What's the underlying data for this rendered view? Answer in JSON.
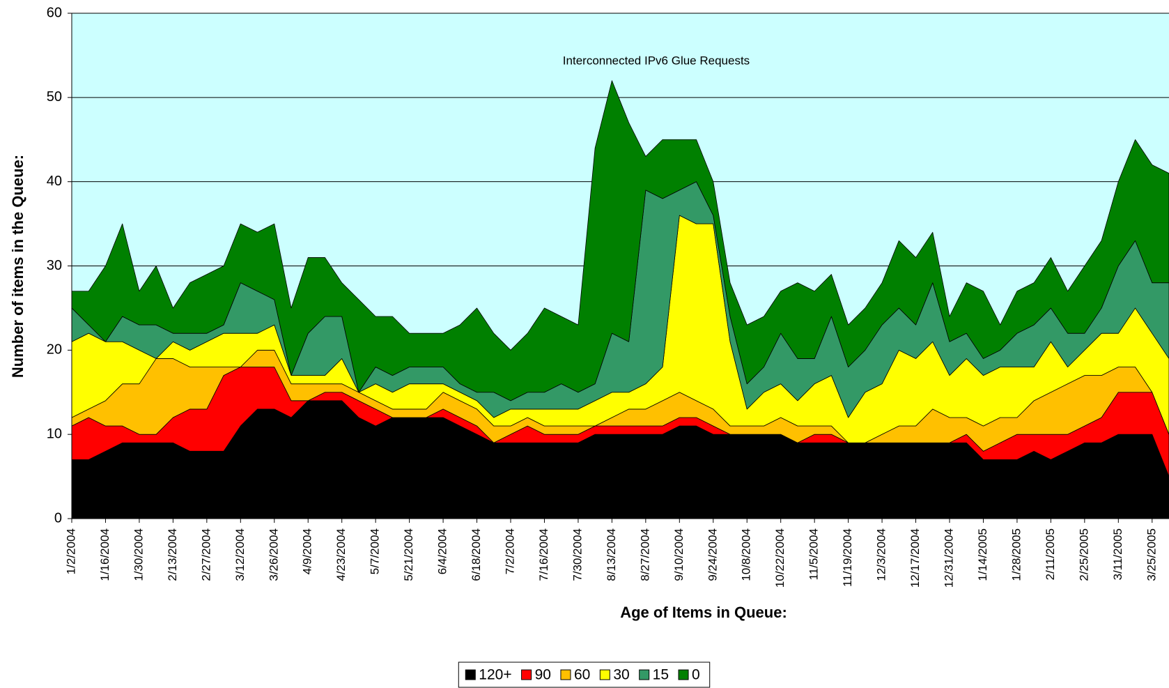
{
  "chart_data": {
    "type": "stacked_area",
    "title": "Interconnected IPv6 Glue Requests",
    "x_label": "Age of Items in Queue:",
    "y_label": "Number of items in the Queue:",
    "categories": [
      "1/2/2004",
      null,
      "1/16/2004",
      null,
      "1/30/2004",
      null,
      "2/13/2004",
      null,
      "2/27/2004",
      null,
      "3/12/2004",
      null,
      "3/26/2004",
      null,
      "4/9/2004",
      null,
      "4/23/2004",
      null,
      "5/7/2004",
      null,
      "5/21/2004",
      null,
      "6/4/2004",
      null,
      "6/18/2004",
      null,
      "7/2/2004",
      null,
      "7/16/2004",
      null,
      "7/30/2004",
      null,
      "8/13/2004",
      null,
      "8/27/2004",
      null,
      "9/10/2004",
      null,
      "9/24/2004",
      null,
      "10/8/2004",
      null,
      "10/22/2004",
      null,
      "11/5/2004",
      null,
      "11/19/2004",
      null,
      "12/3/2004",
      null,
      "12/17/2004",
      null,
      "12/31/2004",
      null,
      "1/14/2005",
      null,
      "1/28/2005",
      null,
      "2/11/2005",
      null,
      "2/25/2005",
      null,
      "3/11/2005",
      null,
      "3/25/2005",
      null
    ],
    "series": [
      {
        "name": "120+",
        "color": "#000000",
        "values": [
          7,
          7,
          8,
          9,
          9,
          9,
          9,
          8,
          8,
          8,
          11,
          13,
          13,
          12,
          14,
          14,
          14,
          12,
          11,
          12,
          12,
          12,
          12,
          11,
          10,
          9,
          9,
          9,
          9,
          9,
          9,
          10,
          10,
          10,
          10,
          10,
          11,
          11,
          10,
          10,
          10,
          10,
          10,
          9,
          9,
          9,
          9,
          9,
          9,
          9,
          9,
          9,
          9,
          9,
          7,
          7,
          7,
          8,
          7,
          8,
          9,
          9,
          10,
          10,
          10,
          5
        ]
      },
      {
        "name": "90",
        "color": "#ff0000",
        "values": [
          4,
          5,
          3,
          2,
          1,
          1,
          3,
          5,
          5,
          9,
          7,
          5,
          5,
          2,
          0,
          1,
          1,
          2,
          2,
          0,
          0,
          0,
          1,
          1,
          1,
          0,
          1,
          2,
          1,
          1,
          1,
          1,
          1,
          1,
          1,
          1,
          1,
          1,
          1,
          0,
          0,
          0,
          0,
          0,
          1,
          1,
          0,
          0,
          0,
          0,
          0,
          0,
          0,
          1,
          1,
          2,
          3,
          2,
          3,
          2,
          2,
          3,
          5,
          5,
          5,
          5
        ]
      },
      {
        "name": "60",
        "color": "#ffc000",
        "values": [
          1,
          1,
          3,
          5,
          6,
          9,
          7,
          5,
          5,
          1,
          0,
          2,
          2,
          2,
          2,
          1,
          1,
          1,
          1,
          1,
          1,
          1,
          2,
          2,
          2,
          2,
          1,
          1,
          1,
          1,
          1,
          0,
          1,
          2,
          2,
          3,
          3,
          2,
          2,
          1,
          1,
          1,
          2,
          2,
          1,
          1,
          0,
          0,
          1,
          2,
          2,
          4,
          3,
          2,
          3,
          3,
          2,
          4,
          5,
          6,
          6,
          5,
          3,
          3,
          0,
          0
        ]
      },
      {
        "name": "30",
        "color": "#ffff00",
        "values": [
          9,
          9,
          7,
          5,
          4,
          0,
          2,
          2,
          3,
          4,
          4,
          2,
          3,
          1,
          1,
          1,
          3,
          0,
          2,
          2,
          3,
          3,
          1,
          1,
          1,
          1,
          2,
          1,
          2,
          2,
          2,
          3,
          3,
          2,
          3,
          4,
          21,
          21,
          22,
          10,
          2,
          4,
          4,
          3,
          5,
          6,
          3,
          6,
          6,
          9,
          8,
          8,
          5,
          7,
          6,
          6,
          6,
          4,
          6,
          2,
          3,
          5,
          4,
          7,
          7,
          9
        ]
      },
      {
        "name": "15",
        "color": "#339966",
        "values": [
          4,
          1,
          0,
          3,
          3,
          4,
          1,
          2,
          1,
          1,
          6,
          5,
          3,
          0,
          5,
          7,
          5,
          0,
          2,
          2,
          2,
          2,
          2,
          1,
          1,
          3,
          1,
          2,
          2,
          3,
          2,
          2,
          7,
          6,
          23,
          20,
          3,
          5,
          1,
          3,
          3,
          3,
          6,
          5,
          3,
          7,
          6,
          5,
          7,
          5,
          4,
          7,
          4,
          3,
          2,
          2,
          4,
          5,
          4,
          4,
          2,
          3,
          8,
          8,
          6,
          9
        ]
      },
      {
        "name": "0",
        "color": "#008000",
        "values": [
          2,
          4,
          9,
          11,
          4,
          7,
          3,
          6,
          7,
          7,
          7,
          7,
          9,
          8,
          9,
          7,
          4,
          11,
          6,
          7,
          4,
          4,
          4,
          7,
          10,
          7,
          6,
          7,
          10,
          8,
          8,
          28,
          30,
          26,
          4,
          7,
          6,
          5,
          4,
          4,
          7,
          6,
          5,
          9,
          8,
          5,
          5,
          5,
          5,
          8,
          8,
          6,
          3,
          6,
          8,
          3,
          5,
          5,
          6,
          5,
          8,
          8,
          10,
          12,
          14,
          13
        ]
      }
    ],
    "ylim": [
      0,
      60
    ],
    "yticks": [
      0,
      10,
      20,
      30,
      40,
      50,
      60
    ],
    "grid": true,
    "plot_background": "#ccffff",
    "legend": "bottom"
  }
}
